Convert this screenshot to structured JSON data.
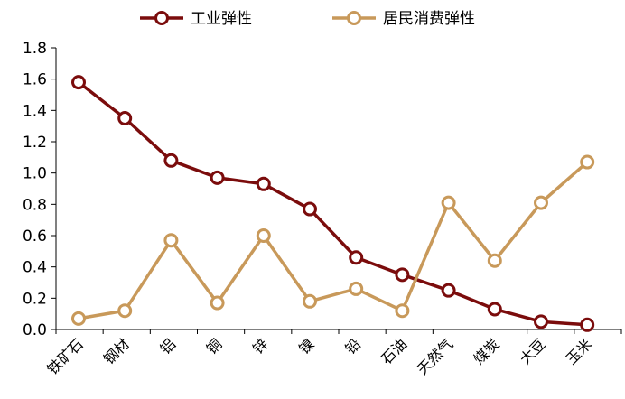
{
  "chart_data": {
    "type": "line",
    "title": "",
    "xlabel": "",
    "ylabel": "",
    "ylim": [
      0,
      1.8
    ],
    "y_ticks": [
      "0.0",
      "0.2",
      "0.4",
      "0.6",
      "0.8",
      "1.0",
      "1.2",
      "1.4",
      "1.6",
      "1.8"
    ],
    "grid": false,
    "legend_position": "top",
    "categories": [
      "铁矿石",
      "钢材",
      "铝",
      "铜",
      "锌",
      "镍",
      "铅",
      "石油",
      "天然气",
      "煤炭",
      "大豆",
      "玉米"
    ],
    "series": [
      {
        "name": "工业弹性",
        "color": "#7B0C0C",
        "values": [
          1.58,
          1.35,
          1.08,
          0.97,
          0.93,
          0.77,
          0.46,
          0.35,
          0.25,
          0.13,
          0.05,
          0.03
        ]
      },
      {
        "name": "居民消费弹性",
        "color": "#C8995A",
        "values": [
          0.07,
          0.12,
          0.57,
          0.17,
          0.6,
          0.18,
          0.26,
          0.12,
          0.81,
          0.44,
          0.81,
          1.07
        ]
      }
    ]
  }
}
